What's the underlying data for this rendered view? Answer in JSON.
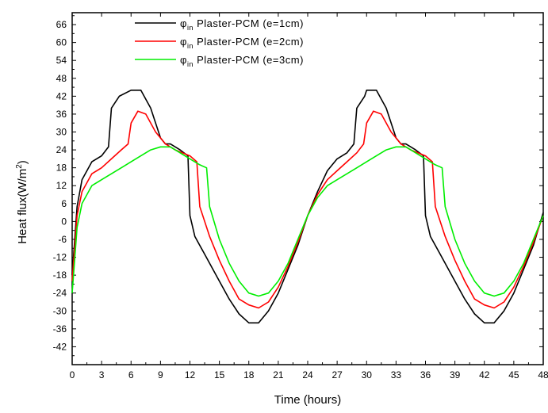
{
  "chart_data": {
    "type": "line",
    "xlabel": "Time (hours)",
    "ylabel": {
      "prefix": "Heat flux(W/m",
      "sup": "2",
      "suffix": ")"
    },
    "xlim": [
      0,
      48
    ],
    "ylim": [
      -48,
      70
    ],
    "xticks": [
      0,
      3,
      6,
      9,
      12,
      15,
      18,
      21,
      24,
      27,
      30,
      33,
      36,
      39,
      42,
      45,
      48
    ],
    "yticks": [
      -42,
      -36,
      -30,
      -24,
      -18,
      -12,
      -6,
      0,
      6,
      12,
      18,
      24,
      30,
      36,
      42,
      48,
      54,
      60,
      66
    ],
    "legend_position": "top-center",
    "series": [
      {
        "name": "φin Plaster-PCM (e=1cm)",
        "legend": {
          "symbol": "φ",
          "sub": "in",
          "text": " Plaster-PCM  (e=1cm)"
        },
        "color": "#000000",
        "points": [
          [
            0,
            -18
          ],
          [
            0.5,
            5
          ],
          [
            1,
            14
          ],
          [
            2,
            20
          ],
          [
            3,
            22
          ],
          [
            3.7,
            25
          ],
          [
            4,
            38
          ],
          [
            4.8,
            42
          ],
          [
            6,
            44
          ],
          [
            7,
            44
          ],
          [
            8,
            38
          ],
          [
            9,
            28
          ],
          [
            9.5,
            26
          ],
          [
            10,
            26
          ],
          [
            11,
            24
          ],
          [
            11.8,
            22
          ],
          [
            12,
            2
          ],
          [
            12.5,
            -5
          ],
          [
            13.5,
            -11
          ],
          [
            15,
            -20
          ],
          [
            16,
            -26
          ],
          [
            17,
            -31
          ],
          [
            18,
            -34
          ],
          [
            19,
            -34
          ],
          [
            20,
            -30
          ],
          [
            21,
            -24
          ],
          [
            22,
            -16
          ],
          [
            23,
            -8
          ],
          [
            24,
            2
          ],
          [
            25,
            10
          ],
          [
            26,
            17
          ],
          [
            27,
            21
          ],
          [
            28,
            23
          ],
          [
            28.7,
            26
          ],
          [
            29,
            38
          ],
          [
            29.8,
            42
          ],
          [
            30,
            44
          ],
          [
            31,
            44
          ],
          [
            32,
            38
          ],
          [
            33,
            28
          ],
          [
            33.5,
            26
          ],
          [
            34,
            26
          ],
          [
            35,
            24
          ],
          [
            35.8,
            22
          ],
          [
            36,
            2
          ],
          [
            36.5,
            -5
          ],
          [
            37.5,
            -11
          ],
          [
            39,
            -20
          ],
          [
            40,
            -26
          ],
          [
            41,
            -31
          ],
          [
            42,
            -34
          ],
          [
            43,
            -34
          ],
          [
            44,
            -30
          ],
          [
            45,
            -24
          ],
          [
            46,
            -16
          ],
          [
            47,
            -8
          ],
          [
            48,
            3
          ]
        ]
      },
      {
        "name": "φin Plaster-PCM (e=2cm)",
        "legend": {
          "symbol": "φ",
          "sub": "in",
          "text": " Plaster-PCM  (e=2cm)"
        },
        "color": "#ff0000",
        "points": [
          [
            0,
            -20
          ],
          [
            0.5,
            2
          ],
          [
            1,
            10
          ],
          [
            2,
            16
          ],
          [
            3,
            18
          ],
          [
            4,
            21
          ],
          [
            5,
            24
          ],
          [
            5.7,
            26
          ],
          [
            6,
            33
          ],
          [
            6.7,
            37
          ],
          [
            7.5,
            36
          ],
          [
            8.5,
            30
          ],
          [
            9.5,
            26
          ],
          [
            10.5,
            24
          ],
          [
            12,
            22
          ],
          [
            12.7,
            20
          ],
          [
            13,
            5
          ],
          [
            14,
            -5
          ],
          [
            15,
            -13
          ],
          [
            16,
            -20
          ],
          [
            17,
            -26
          ],
          [
            18,
            -28
          ],
          [
            19,
            -29
          ],
          [
            20,
            -27
          ],
          [
            21,
            -22
          ],
          [
            22,
            -15
          ],
          [
            23,
            -7
          ],
          [
            24,
            2
          ],
          [
            25,
            9
          ],
          [
            26,
            14
          ],
          [
            27,
            17
          ],
          [
            28,
            20
          ],
          [
            29,
            23
          ],
          [
            29.7,
            26
          ],
          [
            30,
            33
          ],
          [
            30.7,
            37
          ],
          [
            31.5,
            36
          ],
          [
            32.5,
            30
          ],
          [
            33.5,
            26
          ],
          [
            34.5,
            24
          ],
          [
            36,
            22
          ],
          [
            36.7,
            20
          ],
          [
            37,
            5
          ],
          [
            38,
            -5
          ],
          [
            39,
            -13
          ],
          [
            40,
            -20
          ],
          [
            41,
            -26
          ],
          [
            42,
            -28
          ],
          [
            43,
            -29
          ],
          [
            44,
            -27
          ],
          [
            45,
            -22
          ],
          [
            46,
            -15
          ],
          [
            47,
            -7
          ],
          [
            48,
            2
          ]
        ]
      },
      {
        "name": "φin Plaster-PCM (e=3cm)",
        "legend": {
          "symbol": "φ",
          "sub": "in",
          "text": " Plaster-PCM  (e=3cm)"
        },
        "color": "#00ee00",
        "points": [
          [
            0,
            -24
          ],
          [
            0.5,
            -2
          ],
          [
            1,
            6
          ],
          [
            2,
            12
          ],
          [
            3,
            14
          ],
          [
            4,
            16
          ],
          [
            5,
            18
          ],
          [
            6,
            20
          ],
          [
            7,
            22
          ],
          [
            8,
            24
          ],
          [
            9,
            25
          ],
          [
            10,
            25
          ],
          [
            11,
            23
          ],
          [
            12,
            21
          ],
          [
            13,
            19
          ],
          [
            13.7,
            18
          ],
          [
            14,
            5
          ],
          [
            15,
            -6
          ],
          [
            16,
            -14
          ],
          [
            17,
            -20
          ],
          [
            18,
            -24
          ],
          [
            19,
            -25
          ],
          [
            20,
            -24
          ],
          [
            21,
            -20
          ],
          [
            22,
            -14
          ],
          [
            23,
            -6
          ],
          [
            24,
            2
          ],
          [
            25,
            8
          ],
          [
            26,
            12
          ],
          [
            27,
            14
          ],
          [
            28,
            16
          ],
          [
            29,
            18
          ],
          [
            30,
            20
          ],
          [
            31,
            22
          ],
          [
            32,
            24
          ],
          [
            33,
            25
          ],
          [
            34,
            25
          ],
          [
            35,
            23
          ],
          [
            36,
            21
          ],
          [
            37,
            19
          ],
          [
            37.7,
            18
          ],
          [
            38,
            5
          ],
          [
            39,
            -6
          ],
          [
            40,
            -14
          ],
          [
            41,
            -20
          ],
          [
            42,
            -24
          ],
          [
            43,
            -25
          ],
          [
            44,
            -24
          ],
          [
            45,
            -20
          ],
          [
            46,
            -14
          ],
          [
            47,
            -6
          ],
          [
            48,
            2
          ]
        ]
      }
    ]
  }
}
